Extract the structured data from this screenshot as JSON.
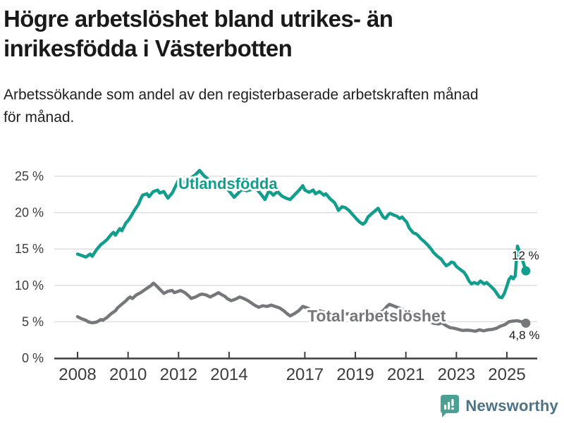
{
  "title": {
    "line1": "Högre arbetslöshet bland utrikes- än",
    "line2": "inrikesfödda i Västerbotten"
  },
  "subtitle": {
    "line1": "Arbetssökande som andel av den registerbaserade arbetskraften månad",
    "line2": "för månad."
  },
  "chart_data": {
    "type": "line",
    "unit": "percent",
    "grid": true,
    "legend": "inline-labels-on-lines",
    "xlim": [
      2007.8,
      2026.2
    ],
    "ylim": [
      0,
      26
    ],
    "x_axis": {
      "ticks": [
        {
          "v": 2008,
          "label": "2008"
        },
        {
          "v": 2010,
          "label": "2010"
        },
        {
          "v": 2012,
          "label": "2012"
        },
        {
          "v": 2014,
          "label": "2014"
        },
        {
          "v": 2017,
          "label": "2017"
        },
        {
          "v": 2019,
          "label": "2019"
        },
        {
          "v": 2021,
          "label": "2021"
        },
        {
          "v": 2023,
          "label": "2023"
        },
        {
          "v": 2025,
          "label": "2025"
        }
      ]
    },
    "y_axis": {
      "ticks": [
        {
          "v": 0,
          "label": "0 %"
        },
        {
          "v": 5,
          "label": "5 %"
        },
        {
          "v": 10,
          "label": "10 %"
        },
        {
          "v": 15,
          "label": "15 %"
        },
        {
          "v": 20,
          "label": "20 %"
        },
        {
          "v": 25,
          "label": "25 %"
        }
      ]
    },
    "series": [
      {
        "name": "Utlandsfödda",
        "color": "#119e8d",
        "end_label": "12 %",
        "end_value": 12,
        "points": [
          [
            2008.0,
            14.3
          ],
          [
            2008.17,
            14.1
          ],
          [
            2008.33,
            13.9
          ],
          [
            2008.5,
            14.3
          ],
          [
            2008.58,
            14.0
          ],
          [
            2008.75,
            14.9
          ],
          [
            2008.92,
            15.6
          ],
          [
            2009.0,
            15.8
          ],
          [
            2009.17,
            16.3
          ],
          [
            2009.33,
            17.0
          ],
          [
            2009.42,
            17.3
          ],
          [
            2009.5,
            16.9
          ],
          [
            2009.67,
            17.8
          ],
          [
            2009.75,
            17.5
          ],
          [
            2009.92,
            18.6
          ],
          [
            2010.0,
            18.9
          ],
          [
            2010.08,
            19.3
          ],
          [
            2010.25,
            20.3
          ],
          [
            2010.42,
            21.2
          ],
          [
            2010.5,
            21.9
          ],
          [
            2010.58,
            22.4
          ],
          [
            2010.75,
            22.6
          ],
          [
            2010.83,
            22.2
          ],
          [
            2011.0,
            22.9
          ],
          [
            2011.17,
            23.1
          ],
          [
            2011.25,
            22.7
          ],
          [
            2011.42,
            22.9
          ],
          [
            2011.5,
            22.4
          ],
          [
            2011.58,
            22.0
          ],
          [
            2011.75,
            22.7
          ],
          [
            2011.92,
            23.9
          ],
          [
            2012.0,
            24.5
          ],
          [
            2012.17,
            24.1
          ],
          [
            2012.33,
            24.4
          ],
          [
            2012.5,
            24.8
          ],
          [
            2012.67,
            25.2
          ],
          [
            2012.83,
            25.8
          ],
          [
            2013.0,
            25.1
          ],
          [
            2013.17,
            24.6
          ],
          [
            2013.33,
            24.1
          ],
          [
            2013.5,
            23.8
          ],
          [
            2013.67,
            23.6
          ],
          [
            2013.9,
            23.4
          ],
          [
            2014.2,
            22.1
          ],
          [
            2014.5,
            23.2
          ],
          [
            2014.7,
            23.0
          ],
          [
            2014.9,
            23.2
          ],
          [
            2015.1,
            23.2
          ],
          [
            2015.25,
            22.6
          ],
          [
            2015.42,
            21.8
          ],
          [
            2015.58,
            23.0
          ],
          [
            2015.75,
            22.4
          ],
          [
            2015.92,
            22.9
          ],
          [
            2016.08,
            22.3
          ],
          [
            2016.25,
            22.0
          ],
          [
            2016.42,
            21.8
          ],
          [
            2016.58,
            22.4
          ],
          [
            2016.75,
            23.0
          ],
          [
            2016.92,
            23.7
          ],
          [
            2017.0,
            23.1
          ],
          [
            2017.17,
            22.8
          ],
          [
            2017.33,
            23.1
          ],
          [
            2017.42,
            22.6
          ],
          [
            2017.58,
            22.9
          ],
          [
            2017.75,
            22.4
          ],
          [
            2017.83,
            22.6
          ],
          [
            2018.0,
            21.9
          ],
          [
            2018.17,
            21.4
          ],
          [
            2018.25,
            20.9
          ],
          [
            2018.33,
            20.3
          ],
          [
            2018.47,
            20.8
          ],
          [
            2018.6,
            20.7
          ],
          [
            2018.75,
            20.3
          ],
          [
            2018.9,
            19.7
          ],
          [
            2019.03,
            19.2
          ],
          [
            2019.17,
            18.7
          ],
          [
            2019.3,
            18.4
          ],
          [
            2019.4,
            18.7
          ],
          [
            2019.5,
            19.4
          ],
          [
            2019.66,
            19.9
          ],
          [
            2019.8,
            20.3
          ],
          [
            2019.9,
            20.6
          ],
          [
            2020.0,
            20.0
          ],
          [
            2020.1,
            19.4
          ],
          [
            2020.2,
            19.2
          ],
          [
            2020.3,
            19.7
          ],
          [
            2020.37,
            19.9
          ],
          [
            2020.5,
            19.7
          ],
          [
            2020.65,
            19.5
          ],
          [
            2020.75,
            19.2
          ],
          [
            2020.85,
            19.4
          ],
          [
            2020.95,
            19.0
          ],
          [
            2021.03,
            18.7
          ],
          [
            2021.13,
            17.9
          ],
          [
            2021.2,
            17.6
          ],
          [
            2021.3,
            17.2
          ],
          [
            2021.4,
            17.1
          ],
          [
            2021.5,
            16.8
          ],
          [
            2021.6,
            16.4
          ],
          [
            2021.7,
            16.1
          ],
          [
            2021.85,
            15.6
          ],
          [
            2022.0,
            15.0
          ],
          [
            2022.1,
            14.5
          ],
          [
            2022.25,
            14.0
          ],
          [
            2022.4,
            13.6
          ],
          [
            2022.5,
            13.1
          ],
          [
            2022.6,
            12.7
          ],
          [
            2022.7,
            12.9
          ],
          [
            2022.8,
            13.2
          ],
          [
            2022.9,
            13.1
          ],
          [
            2023.0,
            12.6
          ],
          [
            2023.15,
            12.2
          ],
          [
            2023.3,
            11.8
          ],
          [
            2023.4,
            11.3
          ],
          [
            2023.5,
            10.6
          ],
          [
            2023.6,
            10.2
          ],
          [
            2023.7,
            10.4
          ],
          [
            2023.85,
            10.2
          ],
          [
            2023.95,
            10.6
          ],
          [
            2024.1,
            10.2
          ],
          [
            2024.2,
            10.4
          ],
          [
            2024.35,
            9.9
          ],
          [
            2024.5,
            9.4
          ],
          [
            2024.6,
            8.9
          ],
          [
            2024.7,
            8.4
          ],
          [
            2024.8,
            8.3
          ],
          [
            2024.9,
            8.9
          ],
          [
            2025.0,
            9.9
          ],
          [
            2025.08,
            10.8
          ],
          [
            2025.17,
            11.2
          ],
          [
            2025.25,
            10.9
          ],
          [
            2025.33,
            11.3
          ],
          [
            2025.42,
            15.4
          ],
          [
            2025.58,
            13.9
          ],
          [
            2025.75,
            12.0
          ]
        ]
      },
      {
        "name": "Total arbetslöshet",
        "color": "#76777b",
        "end_label": "4,8 %",
        "end_value": 4.8,
        "points": [
          [
            2008.0,
            5.7
          ],
          [
            2008.17,
            5.4
          ],
          [
            2008.33,
            5.2
          ],
          [
            2008.42,
            5.0
          ],
          [
            2008.58,
            4.85
          ],
          [
            2008.75,
            4.95
          ],
          [
            2008.92,
            5.3
          ],
          [
            2009.0,
            5.2
          ],
          [
            2009.17,
            5.6
          ],
          [
            2009.33,
            6.1
          ],
          [
            2009.5,
            6.5
          ],
          [
            2009.58,
            6.9
          ],
          [
            2009.75,
            7.4
          ],
          [
            2009.92,
            7.9
          ],
          [
            2010.0,
            8.2
          ],
          [
            2010.08,
            8.4
          ],
          [
            2010.17,
            8.2
          ],
          [
            2010.33,
            8.7
          ],
          [
            2010.5,
            9.0
          ],
          [
            2010.58,
            9.2
          ],
          [
            2010.75,
            9.6
          ],
          [
            2010.92,
            10.0
          ],
          [
            2011.0,
            10.3
          ],
          [
            2011.08,
            10.1
          ],
          [
            2011.25,
            9.5
          ],
          [
            2011.42,
            8.9
          ],
          [
            2011.58,
            9.2
          ],
          [
            2011.75,
            9.3
          ],
          [
            2011.83,
            9.0
          ],
          [
            2012.0,
            9.2
          ],
          [
            2012.08,
            9.3
          ],
          [
            2012.25,
            9.0
          ],
          [
            2012.42,
            8.5
          ],
          [
            2012.5,
            8.2
          ],
          [
            2012.67,
            8.4
          ],
          [
            2012.83,
            8.7
          ],
          [
            2012.92,
            8.8
          ],
          [
            2013.08,
            8.7
          ],
          [
            2013.25,
            8.4
          ],
          [
            2013.42,
            8.7
          ],
          [
            2013.58,
            9.0
          ],
          [
            2013.67,
            8.8
          ],
          [
            2013.83,
            8.5
          ],
          [
            2013.92,
            8.2
          ],
          [
            2014.08,
            7.9
          ],
          [
            2014.25,
            8.1
          ],
          [
            2014.42,
            8.4
          ],
          [
            2014.58,
            8.2
          ],
          [
            2014.75,
            7.9
          ],
          [
            2014.92,
            7.5
          ],
          [
            2015.0,
            7.3
          ],
          [
            2015.17,
            7.0
          ],
          [
            2015.33,
            7.2
          ],
          [
            2015.5,
            7.1
          ],
          [
            2015.67,
            7.3
          ],
          [
            2015.83,
            7.1
          ],
          [
            2016.0,
            6.9
          ],
          [
            2016.17,
            6.5
          ],
          [
            2016.3,
            6.1
          ],
          [
            2016.42,
            5.8
          ],
          [
            2016.58,
            6.1
          ],
          [
            2016.75,
            6.5
          ],
          [
            2016.92,
            7.1
          ],
          [
            2017.1,
            6.9
          ],
          [
            2017.3,
            6.5
          ],
          [
            2017.5,
            6.6
          ],
          [
            2017.7,
            6.4
          ],
          [
            2017.9,
            6.2
          ],
          [
            2018.1,
            6.1
          ],
          [
            2018.3,
            5.9
          ],
          [
            2018.5,
            6.0
          ],
          [
            2018.7,
            6.1
          ],
          [
            2018.9,
            5.9
          ],
          [
            2019.1,
            5.8
          ],
          [
            2019.3,
            5.9
          ],
          [
            2019.5,
            6.0
          ],
          [
            2019.7,
            6.1
          ],
          [
            2019.9,
            6.2
          ],
          [
            2020.1,
            6.5
          ],
          [
            2020.25,
            7.1
          ],
          [
            2020.35,
            7.4
          ],
          [
            2020.5,
            7.2
          ],
          [
            2020.65,
            7.0
          ],
          [
            2020.8,
            6.8
          ],
          [
            2020.95,
            6.6
          ],
          [
            2021.1,
            6.4
          ],
          [
            2021.3,
            6.1
          ],
          [
            2021.5,
            5.8
          ],
          [
            2021.7,
            5.4
          ],
          [
            2021.9,
            5.1
          ],
          [
            2022.1,
            4.8
          ],
          [
            2022.3,
            4.7
          ],
          [
            2022.42,
            4.9
          ],
          [
            2022.58,
            4.5
          ],
          [
            2022.75,
            4.2
          ],
          [
            2022.92,
            4.1
          ],
          [
            2023.08,
            3.95
          ],
          [
            2023.25,
            3.8
          ],
          [
            2023.42,
            3.85
          ],
          [
            2023.58,
            3.8
          ],
          [
            2023.75,
            3.7
          ],
          [
            2023.92,
            3.9
          ],
          [
            2024.08,
            3.75
          ],
          [
            2024.25,
            3.9
          ],
          [
            2024.42,
            3.95
          ],
          [
            2024.58,
            4.1
          ],
          [
            2024.75,
            4.4
          ],
          [
            2024.92,
            4.6
          ],
          [
            2025.08,
            5.0
          ],
          [
            2025.25,
            5.1
          ],
          [
            2025.42,
            5.15
          ],
          [
            2025.58,
            5.0
          ],
          [
            2025.75,
            4.8
          ]
        ]
      }
    ]
  },
  "branding": {
    "logo_text": "Newsworthy",
    "icon": "bar-chart-speech-bubble",
    "icon_color": "#4aa092",
    "text_color": "#4f7386"
  },
  "colors": {
    "teal": "#119e8d",
    "gray": "#76777b",
    "grid": "#dbdbdb",
    "axis": "#3e3e3e",
    "tick_label": "#3d3d3d"
  }
}
